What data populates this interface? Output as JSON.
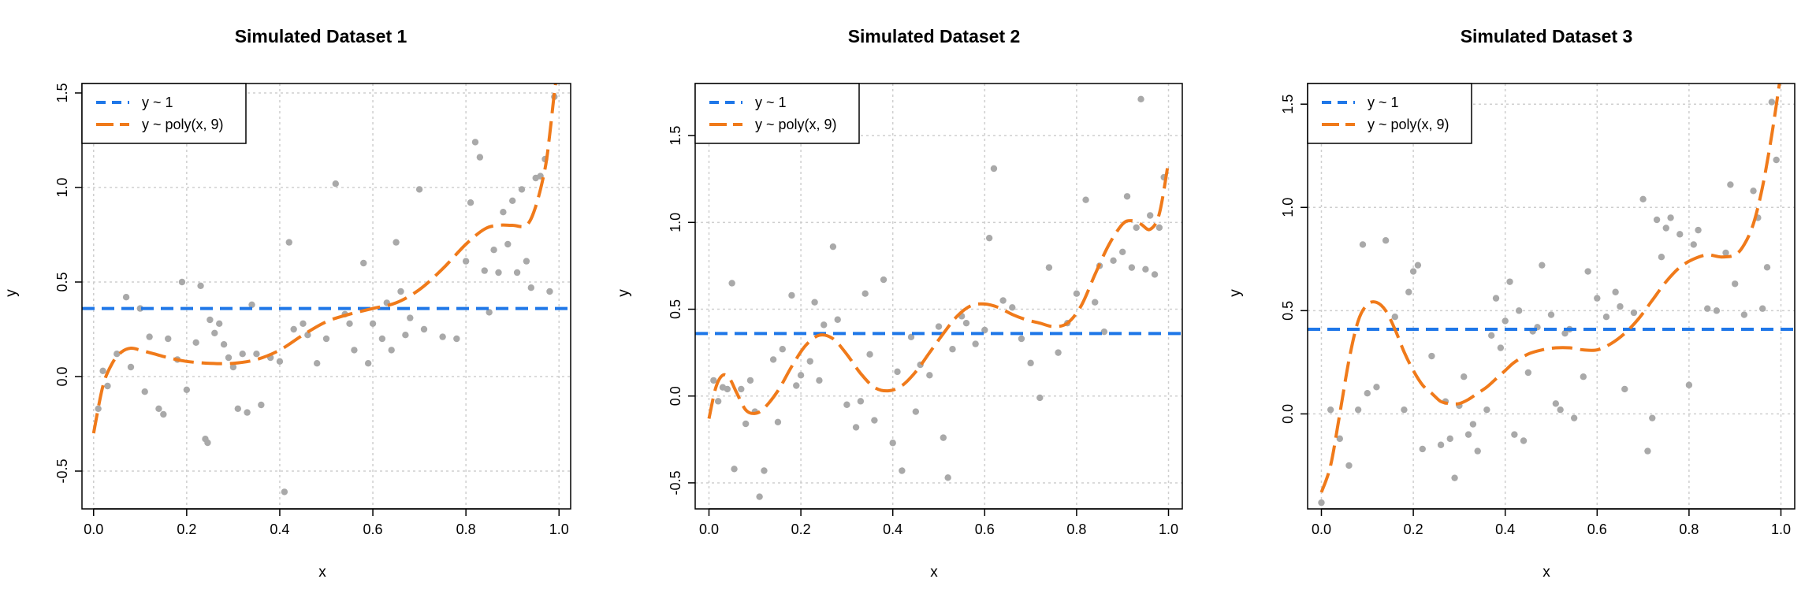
{
  "colors": {
    "null_model": "#1f77e8",
    "poly_model": "#f07a1a",
    "points": "#a9a9a9",
    "grid": "#cfcfcf"
  },
  "chart_data": [
    {
      "type": "scatter",
      "title": "Simulated Dataset 1",
      "xlabel": "x",
      "ylabel": "y",
      "xlim": [
        -0.025,
        1.025
      ],
      "ylim": [
        -0.7,
        1.55
      ],
      "xticks": [
        0.0,
        0.2,
        0.4,
        0.6,
        0.8,
        1.0
      ],
      "xtick_labels": [
        "0.0",
        "0.2",
        "0.4",
        "0.6",
        "0.8",
        "1.0"
      ],
      "yticks": [
        -0.5,
        0.0,
        0.5,
        1.0,
        1.5
      ],
      "ytick_labels": [
        "-0.5",
        "0.0",
        "0.5",
        "1.0",
        "1.5"
      ],
      "grid": true,
      "legend_position": "top-left",
      "legend": [
        "y ~ 1",
        "y ~ poly(x, 9)"
      ],
      "points": {
        "x": [
          0.01,
          0.02,
          0.03,
          0.05,
          0.07,
          0.08,
          0.1,
          0.11,
          0.12,
          0.14,
          0.15,
          0.16,
          0.18,
          0.19,
          0.2,
          0.22,
          0.23,
          0.24,
          0.245,
          0.25,
          0.26,
          0.27,
          0.28,
          0.29,
          0.3,
          0.31,
          0.32,
          0.33,
          0.34,
          0.35,
          0.36,
          0.38,
          0.4,
          0.41,
          0.42,
          0.43,
          0.45,
          0.46,
          0.48,
          0.5,
          0.52,
          0.54,
          0.55,
          0.56,
          0.58,
          0.59,
          0.6,
          0.62,
          0.63,
          0.64,
          0.65,
          0.66,
          0.67,
          0.68,
          0.7,
          0.71,
          0.75,
          0.78,
          0.8,
          0.81,
          0.82,
          0.83,
          0.84,
          0.85,
          0.86,
          0.87,
          0.88,
          0.89,
          0.9,
          0.91,
          0.92,
          0.93,
          0.94,
          0.95,
          0.96,
          0.97,
          0.98,
          0.99
        ],
        "y": [
          -0.17,
          0.03,
          -0.05,
          0.12,
          0.42,
          0.05,
          0.36,
          -0.08,
          0.21,
          -0.17,
          -0.2,
          0.2,
          0.09,
          0.5,
          -0.07,
          0.18,
          0.48,
          -0.33,
          -0.35,
          0.3,
          0.23,
          0.28,
          0.17,
          0.1,
          0.05,
          -0.17,
          0.12,
          -0.19,
          0.38,
          0.12,
          -0.15,
          0.1,
          0.08,
          -0.61,
          0.71,
          0.25,
          0.28,
          0.22,
          0.07,
          0.2,
          1.02,
          0.33,
          0.28,
          0.14,
          0.6,
          0.07,
          0.28,
          0.2,
          0.39,
          0.14,
          0.71,
          0.45,
          0.22,
          0.31,
          0.99,
          0.25,
          0.21,
          0.2,
          0.61,
          0.92,
          1.24,
          1.16,
          0.56,
          0.34,
          0.67,
          0.55,
          0.87,
          0.7,
          0.93,
          0.55,
          0.99,
          0.61,
          0.47,
          1.05,
          1.06,
          1.15,
          0.45,
          1.48
        ]
      },
      "null_fit": 0.36,
      "poly_fit": {
        "x": [
          0.0,
          0.02,
          0.04,
          0.06,
          0.08,
          0.1,
          0.13,
          0.16,
          0.2,
          0.25,
          0.3,
          0.35,
          0.4,
          0.45,
          0.5,
          0.55,
          0.6,
          0.65,
          0.7,
          0.75,
          0.8,
          0.84,
          0.87,
          0.9,
          0.93,
          0.95,
          0.97,
          0.98,
          0.99,
          1.0
        ],
        "y": [
          -0.3,
          -0.05,
          0.07,
          0.13,
          0.15,
          0.14,
          0.12,
          0.1,
          0.08,
          0.07,
          0.07,
          0.09,
          0.14,
          0.22,
          0.29,
          0.33,
          0.36,
          0.39,
          0.46,
          0.57,
          0.7,
          0.78,
          0.8,
          0.8,
          0.8,
          0.9,
          1.1,
          1.28,
          1.5,
          1.68
        ]
      }
    },
    {
      "type": "scatter",
      "title": "Simulated Dataset 2",
      "xlabel": "x",
      "ylabel": "y",
      "xlim": [
        -0.03,
        1.03
      ],
      "ylim": [
        -0.65,
        1.8
      ],
      "xticks": [
        0.0,
        0.2,
        0.4,
        0.6,
        0.8,
        1.0
      ],
      "xtick_labels": [
        "0.0",
        "0.2",
        "0.4",
        "0.6",
        "0.8",
        "1.0"
      ],
      "yticks": [
        -0.5,
        0.0,
        0.5,
        1.0,
        1.5
      ],
      "ytick_labels": [
        "-0.5",
        "0.0",
        "0.5",
        "1.0",
        "1.5"
      ],
      "grid": true,
      "legend_position": "top-left",
      "legend": [
        "y ~ 1",
        "y ~ poly(x, 9)"
      ],
      "points": {
        "x": [
          0.01,
          0.02,
          0.03,
          0.04,
          0.05,
          0.055,
          0.07,
          0.08,
          0.09,
          0.1,
          0.11,
          0.12,
          0.14,
          0.15,
          0.16,
          0.18,
          0.19,
          0.2,
          0.22,
          0.23,
          0.24,
          0.25,
          0.27,
          0.28,
          0.3,
          0.32,
          0.33,
          0.34,
          0.35,
          0.36,
          0.38,
          0.4,
          0.41,
          0.42,
          0.44,
          0.45,
          0.46,
          0.48,
          0.5,
          0.51,
          0.52,
          0.53,
          0.55,
          0.56,
          0.58,
          0.6,
          0.61,
          0.62,
          0.64,
          0.66,
          0.68,
          0.7,
          0.72,
          0.74,
          0.76,
          0.78,
          0.8,
          0.82,
          0.84,
          0.85,
          0.86,
          0.88,
          0.9,
          0.91,
          0.92,
          0.93,
          0.94,
          0.95,
          0.96,
          0.97,
          0.98,
          0.99
        ],
        "y": [
          0.09,
          -0.03,
          0.05,
          0.04,
          0.65,
          -0.42,
          0.04,
          -0.16,
          0.09,
          -0.09,
          -0.58,
          -0.43,
          0.21,
          -0.15,
          0.27,
          0.58,
          0.06,
          0.12,
          0.2,
          0.54,
          0.09,
          0.41,
          0.86,
          0.44,
          -0.05,
          -0.18,
          -0.03,
          0.59,
          0.24,
          -0.14,
          0.67,
          -0.27,
          0.14,
          -0.43,
          0.34,
          -0.09,
          0.18,
          0.12,
          0.4,
          -0.24,
          -0.47,
          0.27,
          0.46,
          0.42,
          0.3,
          0.38,
          0.91,
          1.31,
          0.55,
          0.51,
          0.33,
          0.19,
          -0.01,
          0.74,
          0.25,
          0.42,
          0.59,
          1.13,
          0.54,
          0.75,
          0.37,
          0.78,
          0.83,
          1.15,
          0.74,
          0.97,
          1.71,
          0.73,
          1.04,
          0.7,
          0.97,
          1.26
        ]
      },
      "null_fit": 0.36,
      "poly_fit": {
        "x": [
          0.0,
          0.015,
          0.03,
          0.045,
          0.06,
          0.08,
          0.1,
          0.12,
          0.15,
          0.18,
          0.21,
          0.24,
          0.27,
          0.3,
          0.33,
          0.36,
          0.39,
          0.42,
          0.45,
          0.48,
          0.51,
          0.54,
          0.57,
          0.6,
          0.63,
          0.66,
          0.69,
          0.72,
          0.75,
          0.78,
          0.81,
          0.84,
          0.87,
          0.9,
          0.92,
          0.94,
          0.96,
          0.98,
          1.0
        ],
        "y": [
          -0.13,
          0.05,
          0.12,
          0.1,
          0.02,
          -0.08,
          -0.1,
          -0.07,
          0.03,
          0.17,
          0.29,
          0.35,
          0.33,
          0.24,
          0.13,
          0.05,
          0.03,
          0.06,
          0.14,
          0.25,
          0.36,
          0.46,
          0.52,
          0.53,
          0.51,
          0.47,
          0.44,
          0.42,
          0.4,
          0.42,
          0.52,
          0.7,
          0.87,
          0.99,
          1.01,
          0.99,
          0.96,
          1.05,
          1.35
        ]
      }
    },
    {
      "type": "scatter",
      "title": "Simulated Dataset 3",
      "xlabel": "x",
      "ylabel": "y",
      "xlim": [
        -0.03,
        1.03
      ],
      "ylim": [
        -0.46,
        1.6
      ],
      "xticks": [
        0.0,
        0.2,
        0.4,
        0.6,
        0.8,
        1.0
      ],
      "xtick_labels": [
        "0.0",
        "0.2",
        "0.4",
        "0.6",
        "0.8",
        "1.0"
      ],
      "yticks": [
        0.0,
        0.5,
        1.0,
        1.5
      ],
      "ytick_labels": [
        "0.0",
        "0.5",
        "1.0",
        "1.5"
      ],
      "grid": true,
      "legend_position": "top-left",
      "legend": [
        "y ~ 1",
        "y ~ poly(x, 9)"
      ],
      "points": {
        "x": [
          0.0,
          0.02,
          0.04,
          0.06,
          0.08,
          0.09,
          0.1,
          0.12,
          0.14,
          0.16,
          0.18,
          0.19,
          0.2,
          0.21,
          0.22,
          0.24,
          0.26,
          0.27,
          0.28,
          0.29,
          0.3,
          0.31,
          0.32,
          0.33,
          0.34,
          0.36,
          0.37,
          0.38,
          0.39,
          0.4,
          0.41,
          0.42,
          0.43,
          0.44,
          0.45,
          0.46,
          0.47,
          0.48,
          0.5,
          0.51,
          0.52,
          0.53,
          0.54,
          0.55,
          0.57,
          0.58,
          0.6,
          0.62,
          0.64,
          0.65,
          0.66,
          0.68,
          0.7,
          0.71,
          0.72,
          0.73,
          0.74,
          0.75,
          0.76,
          0.78,
          0.8,
          0.81,
          0.82,
          0.84,
          0.86,
          0.88,
          0.89,
          0.9,
          0.92,
          0.94,
          0.95,
          0.96,
          0.97,
          0.98,
          0.99
        ],
        "y": [
          -0.43,
          0.02,
          -0.12,
          -0.25,
          0.02,
          0.82,
          0.1,
          0.13,
          0.84,
          0.47,
          0.02,
          0.59,
          0.69,
          0.72,
          -0.17,
          0.28,
          -0.15,
          0.06,
          -0.12,
          -0.31,
          0.04,
          0.18,
          -0.1,
          -0.05,
          -0.18,
          0.02,
          0.38,
          0.56,
          0.32,
          0.45,
          0.64,
          -0.1,
          0.5,
          -0.13,
          0.2,
          0.4,
          0.42,
          0.72,
          0.48,
          0.05,
          0.02,
          0.39,
          0.41,
          -0.02,
          0.18,
          0.69,
          0.56,
          0.47,
          0.59,
          0.52,
          0.12,
          0.49,
          1.04,
          -0.18,
          -0.02,
          0.94,
          0.76,
          0.9,
          0.95,
          0.87,
          0.14,
          0.82,
          0.89,
          0.51,
          0.5,
          0.78,
          1.11,
          0.63,
          0.48,
          1.08,
          0.95,
          0.51,
          0.71,
          1.51,
          1.23
        ]
      },
      "null_fit": 0.41,
      "poly_fit": {
        "x": [
          0.0,
          0.02,
          0.04,
          0.06,
          0.08,
          0.1,
          0.12,
          0.14,
          0.16,
          0.18,
          0.2,
          0.22,
          0.24,
          0.26,
          0.28,
          0.3,
          0.32,
          0.34,
          0.36,
          0.38,
          0.4,
          0.42,
          0.45,
          0.48,
          0.51,
          0.54,
          0.57,
          0.6,
          0.63,
          0.66,
          0.69,
          0.72,
          0.75,
          0.78,
          0.81,
          0.84,
          0.87,
          0.9,
          0.92,
          0.94,
          0.96,
          0.98,
          1.0
        ],
        "y": [
          -0.38,
          -0.25,
          0.0,
          0.26,
          0.45,
          0.53,
          0.54,
          0.5,
          0.41,
          0.3,
          0.21,
          0.14,
          0.1,
          0.06,
          0.05,
          0.05,
          0.07,
          0.1,
          0.13,
          0.17,
          0.21,
          0.25,
          0.29,
          0.31,
          0.32,
          0.32,
          0.31,
          0.31,
          0.34,
          0.39,
          0.46,
          0.55,
          0.64,
          0.71,
          0.75,
          0.77,
          0.76,
          0.77,
          0.82,
          0.92,
          1.1,
          1.35,
          1.65
        ]
      }
    }
  ]
}
